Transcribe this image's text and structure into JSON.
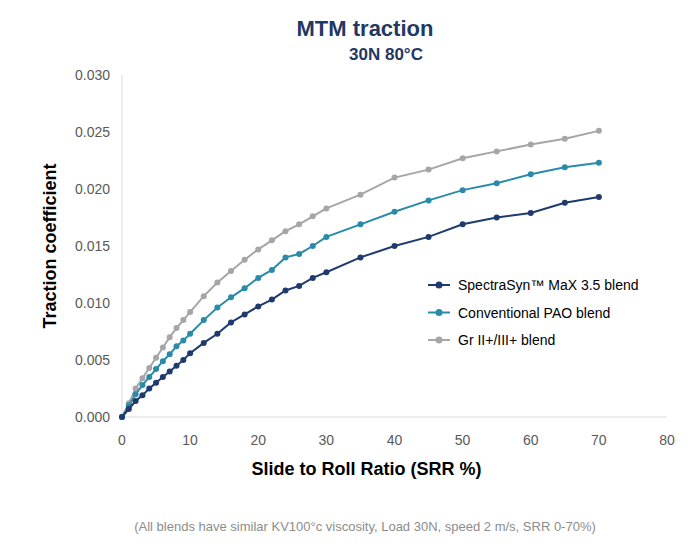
{
  "chart_data": {
    "type": "line",
    "title": "MTM traction",
    "subtitle": "30N 80°C",
    "x_label": "Slide to Roll Ratio (SRR %)",
    "y_label": "Traction coefficient",
    "footnote": "(All blends have similar KV100°c viscosity, Load 30N, speed 2 m/s, SRR 0-70%)",
    "x": [
      0,
      1,
      2,
      3,
      4,
      5,
      6,
      7,
      8,
      9,
      10,
      12,
      14,
      16,
      18,
      20,
      22,
      24,
      26,
      28,
      30,
      35,
      40,
      45,
      50,
      55,
      60,
      65,
      70
    ],
    "series": [
      {
        "name": "SpectraSyn™ MaX 3.5 blend",
        "color": "#1f3a6e",
        "marker": "circle",
        "line_style": "solid",
        "values": [
          0,
          0.0007,
          0.0014,
          0.0019,
          0.0025,
          0.003,
          0.0035,
          0.004,
          0.0045,
          0.005,
          0.0056,
          0.0065,
          0.0073,
          0.0083,
          0.009,
          0.0097,
          0.0103,
          0.0111,
          0.0115,
          0.0122,
          0.0127,
          0.014,
          0.015,
          0.0158,
          0.0169,
          0.0175,
          0.0179,
          0.0188,
          0.0193
        ]
      },
      {
        "name": "Conventional PAO blend",
        "color": "#2a8ba8",
        "marker": "circle",
        "line_style": "solid",
        "values": [
          0,
          0.001,
          0.002,
          0.0028,
          0.0035,
          0.0042,
          0.0049,
          0.0055,
          0.0062,
          0.0067,
          0.0073,
          0.0085,
          0.0096,
          0.0105,
          0.0113,
          0.0122,
          0.0129,
          0.014,
          0.0143,
          0.015,
          0.0158,
          0.0169,
          0.018,
          0.019,
          0.0199,
          0.0205,
          0.0213,
          0.0219,
          0.0223
        ]
      },
      {
        "name": "Gr II+/III+ blend",
        "color": "#a6a6a6",
        "marker": "circle",
        "line_style": "solid",
        "values": [
          0,
          0.0012,
          0.0025,
          0.0034,
          0.0043,
          0.0052,
          0.0061,
          0.007,
          0.0078,
          0.0085,
          0.0092,
          0.0106,
          0.0118,
          0.0128,
          0.0138,
          0.0147,
          0.0155,
          0.0163,
          0.0169,
          0.0176,
          0.0183,
          0.0195,
          0.021,
          0.0217,
          0.0227,
          0.0233,
          0.0239,
          0.0244,
          0.0251
        ]
      }
    ],
    "xlim": [
      0,
      80
    ],
    "xticks": [
      0,
      10,
      20,
      30,
      40,
      50,
      60,
      70,
      80
    ],
    "ylim": [
      0,
      0.03
    ],
    "yticks": [
      {
        "value": 0,
        "label": "0.000"
      },
      {
        "value": 0.005,
        "label": "0.005"
      },
      {
        "value": 0.01,
        "label": "0.010"
      },
      {
        "value": 0.015,
        "label": "0.015"
      },
      {
        "value": 0.02,
        "label": "0.020"
      },
      {
        "value": 0.025,
        "label": "0.025"
      },
      {
        "value": 0.03,
        "label": "0.030"
      }
    ],
    "grid": false,
    "legend": "right"
  }
}
